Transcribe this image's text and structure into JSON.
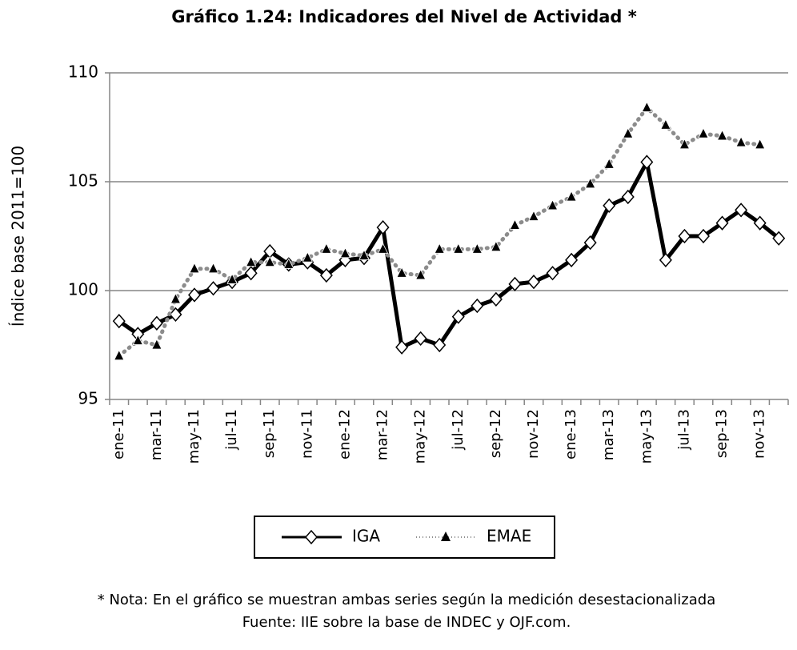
{
  "chart_data": {
    "type": "line",
    "title": "Gráfico 1.24: Indicadores del Nivel de Actividad *",
    "y_label": "Índice base 2011=100",
    "note": "* Nota: En el gráfico se muestran ambas series según la medición desestacionalizada",
    "source": "Fuente: IIE sobre la base de INDEC y OJF.com.",
    "categories": [
      "ene-11",
      null,
      "mar-11",
      null,
      "may-11",
      null,
      "jul-11",
      null,
      "sep-11",
      null,
      "nov-11",
      null,
      "ene-12",
      null,
      "mar-12",
      null,
      "may-12",
      null,
      "jul-12",
      null,
      "sep-12",
      null,
      "nov-12",
      null,
      "ene-13",
      null,
      "mar-13",
      null,
      "may-13",
      null,
      "jul-13",
      null,
      "sep-13",
      null,
      "nov-13",
      null
    ],
    "series": [
      {
        "name": "IGA",
        "color": "#000000",
        "values": [
          98.6,
          98.0,
          98.5,
          98.9,
          99.8,
          100.1,
          100.4,
          100.8,
          101.8,
          101.2,
          101.3,
          100.7,
          101.4,
          101.5,
          102.9,
          97.4,
          97.8,
          97.5,
          98.8,
          99.3,
          99.6,
          100.3,
          100.4,
          100.8,
          101.4,
          102.2,
          103.9,
          104.3,
          105.9,
          101.4,
          102.5,
          102.5,
          103.1,
          103.7,
          103.1,
          102.4
        ]
      },
      {
        "name": "EMAE",
        "color": "#8c8c8c",
        "values": [
          97.0,
          97.7,
          97.5,
          99.6,
          101.0,
          101.0,
          100.5,
          101.3,
          101.3,
          101.2,
          101.5,
          101.9,
          101.7,
          101.6,
          101.9,
          100.8,
          100.7,
          101.9,
          101.9,
          101.9,
          102.0,
          103.0,
          103.4,
          103.9,
          104.3,
          104.9,
          105.8,
          107.2,
          108.4,
          107.6,
          106.7,
          107.2,
          107.1,
          106.8,
          106.7,
          null
        ]
      }
    ],
    "ylim": [
      95,
      110
    ],
    "yticks": [
      95,
      100,
      105,
      110
    ],
    "grid": true
  }
}
